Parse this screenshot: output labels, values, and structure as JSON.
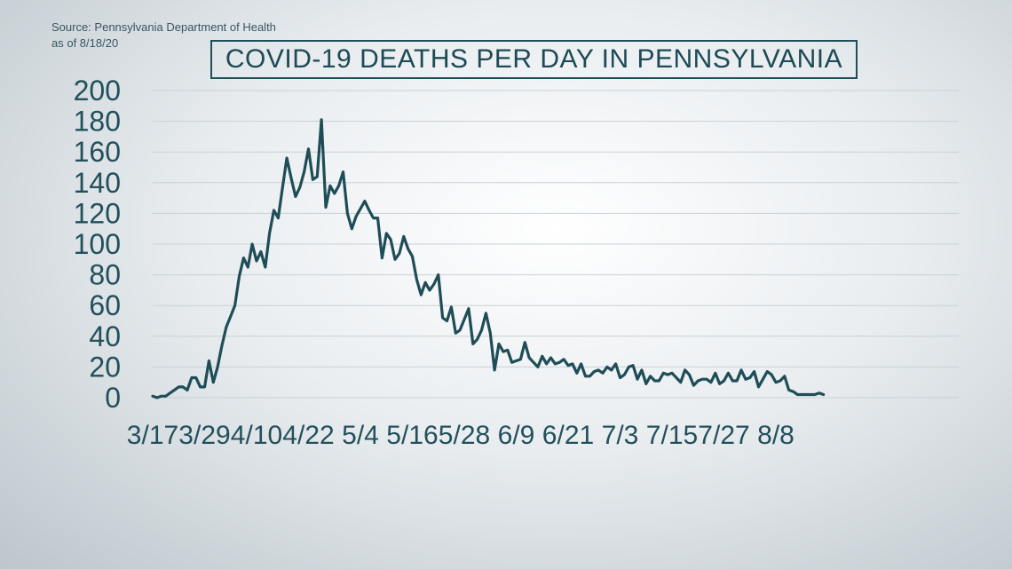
{
  "source_line1": "Source: Pennsylvania Department of Health",
  "source_line2": "as of 8/18/20",
  "colors": {
    "line": "#1f4d57",
    "text": "#22505b",
    "grid": "#c9d1d6"
  },
  "chart_data": {
    "type": "line",
    "title": "COVID-19 DEATHS PER DAY IN PENNSYLVANIA",
    "xlabel": "",
    "ylabel": "",
    "ylim": [
      0,
      200
    ],
    "yticks": [
      0,
      20,
      40,
      60,
      80,
      100,
      120,
      140,
      160,
      180,
      200
    ],
    "grid": true,
    "x_start": "3/17",
    "xtick_labels": [
      "3/17",
      "3/29",
      "4/10",
      "4/22",
      "5/4",
      "5/16",
      "5/28",
      "6/9",
      "6/21",
      "7/3",
      "7/15",
      "7/27",
      "8/8"
    ],
    "xtick_interval_days": 12,
    "series": [
      {
        "values": [
          1,
          0,
          1,
          1,
          3,
          5,
          7,
          7,
          5,
          13,
          13,
          7,
          7,
          24,
          10,
          20,
          34,
          46,
          53,
          60,
          79,
          91,
          85,
          100,
          89,
          95,
          85,
          107,
          122,
          117,
          137,
          156,
          143,
          131,
          137,
          147,
          162,
          142,
          144,
          181,
          124,
          138,
          133,
          138,
          147,
          120,
          110,
          118,
          123,
          128,
          122,
          117,
          117,
          91,
          107,
          103,
          90,
          94,
          105,
          97,
          92,
          77,
          67,
          75,
          70,
          74,
          80,
          52,
          50,
          59,
          42,
          44,
          51,
          58,
          35,
          38,
          44,
          55,
          42,
          18,
          35,
          30,
          31,
          23,
          24,
          25,
          36,
          26,
          23,
          20,
          27,
          22,
          26,
          22,
          23,
          25,
          21,
          22,
          16,
          22,
          14,
          14,
          17,
          18,
          16,
          20,
          18,
          22,
          13,
          15,
          20,
          21,
          12,
          18,
          9,
          14,
          11,
          11,
          16,
          15,
          16,
          13,
          10,
          18,
          15,
          8,
          11,
          12,
          12,
          10,
          16,
          9,
          11,
          16,
          11,
          11,
          18,
          12,
          13,
          17,
          7,
          12,
          17,
          15,
          10,
          11,
          14,
          5,
          4,
          2,
          2,
          2,
          2,
          2,
          3,
          2
        ]
      }
    ]
  }
}
